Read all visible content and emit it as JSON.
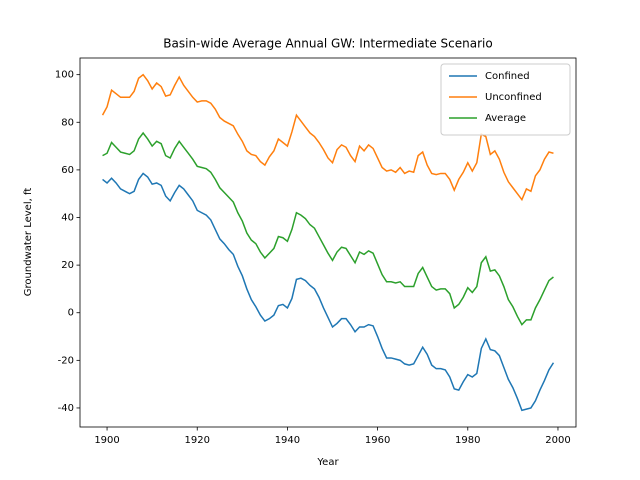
{
  "chart_data": {
    "type": "line",
    "title": "Basin-wide Average Annual GW: Intermediate Scenario",
    "xlabel": "Year",
    "ylabel": "Groundwater Level, ft",
    "x": [
      1899,
      1900,
      1901,
      1902,
      1903,
      1904,
      1905,
      1906,
      1907,
      1908,
      1909,
      1910,
      1911,
      1912,
      1913,
      1914,
      1915,
      1916,
      1917,
      1918,
      1919,
      1920,
      1921,
      1922,
      1923,
      1924,
      1925,
      1926,
      1927,
      1928,
      1929,
      1930,
      1931,
      1932,
      1933,
      1934,
      1935,
      1936,
      1937,
      1938,
      1939,
      1940,
      1941,
      1942,
      1943,
      1944,
      1945,
      1946,
      1947,
      1948,
      1949,
      1950,
      1951,
      1952,
      1953,
      1954,
      1955,
      1956,
      1957,
      1958,
      1959,
      1960,
      1961,
      1962,
      1963,
      1964,
      1965,
      1966,
      1967,
      1968,
      1969,
      1970,
      1971,
      1972,
      1973,
      1974,
      1975,
      1976,
      1977,
      1978,
      1979,
      1980,
      1981,
      1982,
      1983,
      1984,
      1985,
      1986,
      1987,
      1988,
      1989,
      1990,
      1991,
      1992,
      1993,
      1994,
      1995,
      1996,
      1997,
      1998,
      1999
    ],
    "series": [
      {
        "name": "Confined",
        "color": "#1f77b4",
        "values": [
          56,
          54.5,
          56.5,
          54.5,
          52,
          51,
          50,
          51,
          56,
          58.5,
          57,
          54,
          54.5,
          53.5,
          49,
          47,
          50.5,
          53.5,
          52,
          49.5,
          47,
          43,
          42,
          41,
          39,
          35,
          31,
          29,
          26.5,
          24.5,
          19.5,
          15.5,
          10,
          5.5,
          2.5,
          -1,
          -3.5,
          -2.5,
          -1,
          3,
          3.5,
          2,
          6,
          14,
          14.5,
          13.5,
          11.5,
          10,
          6.5,
          2,
          -2,
          -6,
          -4.5,
          -2.5,
          -2.5,
          -5,
          -8,
          -6,
          -6,
          -5,
          -5.5,
          -10,
          -15,
          -19,
          -19,
          -19.5,
          -20,
          -21.5,
          -22,
          -21.5,
          -18,
          -14.5,
          -17.5,
          -22,
          -23.5,
          -23.5,
          -24,
          -27,
          -32,
          -32.5,
          -29,
          -26,
          -27,
          -25.5,
          -15,
          -11,
          -15.5,
          -16,
          -18,
          -23,
          -28,
          -31.5,
          -36,
          -41,
          -40.5,
          -40,
          -37,
          -32.5,
          -28.5,
          -24,
          -21
        ]
      },
      {
        "name": "Unconfined",
        "color": "#ff7f0e",
        "values": [
          83,
          86.5,
          93.5,
          92,
          90.5,
          90.5,
          90.5,
          93,
          98.5,
          100,
          97.5,
          94,
          96.5,
          95,
          91,
          91.5,
          95.5,
          99,
          95.5,
          93,
          90.5,
          88.5,
          89,
          89,
          88,
          85.5,
          82,
          80.5,
          79.5,
          78.5,
          75,
          72,
          68,
          66.5,
          66,
          63.5,
          62,
          65.5,
          68,
          73,
          71.5,
          70,
          76,
          83,
          80.5,
          78,
          75.5,
          74,
          71.5,
          68.5,
          65,
          63,
          68.5,
          70.5,
          69.5,
          66,
          63.5,
          70,
          68,
          70.5,
          69,
          65,
          61,
          59.5,
          60,
          59,
          61,
          58.5,
          59.5,
          59,
          66,
          67.5,
          62,
          58.5,
          58,
          58.5,
          58.5,
          56,
          51.5,
          56,
          59,
          63,
          59.5,
          63,
          75,
          74,
          66.5,
          68,
          64.5,
          59,
          55,
          52.5,
          50,
          47.5,
          52,
          51,
          57.5,
          60,
          64.5,
          67.5,
          67
        ]
      },
      {
        "name": "Average",
        "color": "#2ca02c",
        "values": [
          66,
          67,
          71.5,
          69.5,
          67.5,
          67,
          66.5,
          68,
          73,
          75.5,
          73,
          70,
          72,
          71,
          66,
          65,
          69,
          72,
          69.5,
          67,
          64.5,
          61.5,
          61,
          60.5,
          59,
          56,
          52.5,
          50.5,
          48.5,
          46.5,
          42,
          38.5,
          33.5,
          30.5,
          29,
          25.5,
          23,
          25,
          27,
          32,
          31.5,
          30,
          35,
          42,
          41,
          39.5,
          37,
          35.5,
          32,
          28.5,
          25,
          22,
          25.5,
          27.5,
          27,
          24,
          21,
          25.5,
          24.5,
          26,
          25,
          20.5,
          16,
          13,
          13,
          12.5,
          13,
          11,
          11,
          11,
          16.5,
          19,
          15,
          11,
          9.5,
          10,
          10,
          8,
          2,
          3.5,
          6.5,
          10.5,
          8.5,
          11,
          21,
          23.5,
          17.5,
          18,
          15.5,
          11,
          5.5,
          2.5,
          -1.5,
          -5,
          -3,
          -3,
          2,
          5.5,
          9.5,
          13.5,
          15
        ]
      }
    ],
    "xlim": [
      1894,
      2004
    ],
    "xticks": [
      1900,
      1920,
      1940,
      1960,
      1980,
      2000
    ],
    "ylim": [
      -48,
      107
    ],
    "yticks": [
      -40,
      -20,
      0,
      20,
      40,
      60,
      80,
      100
    ],
    "grid": false,
    "legend": "upper right"
  }
}
